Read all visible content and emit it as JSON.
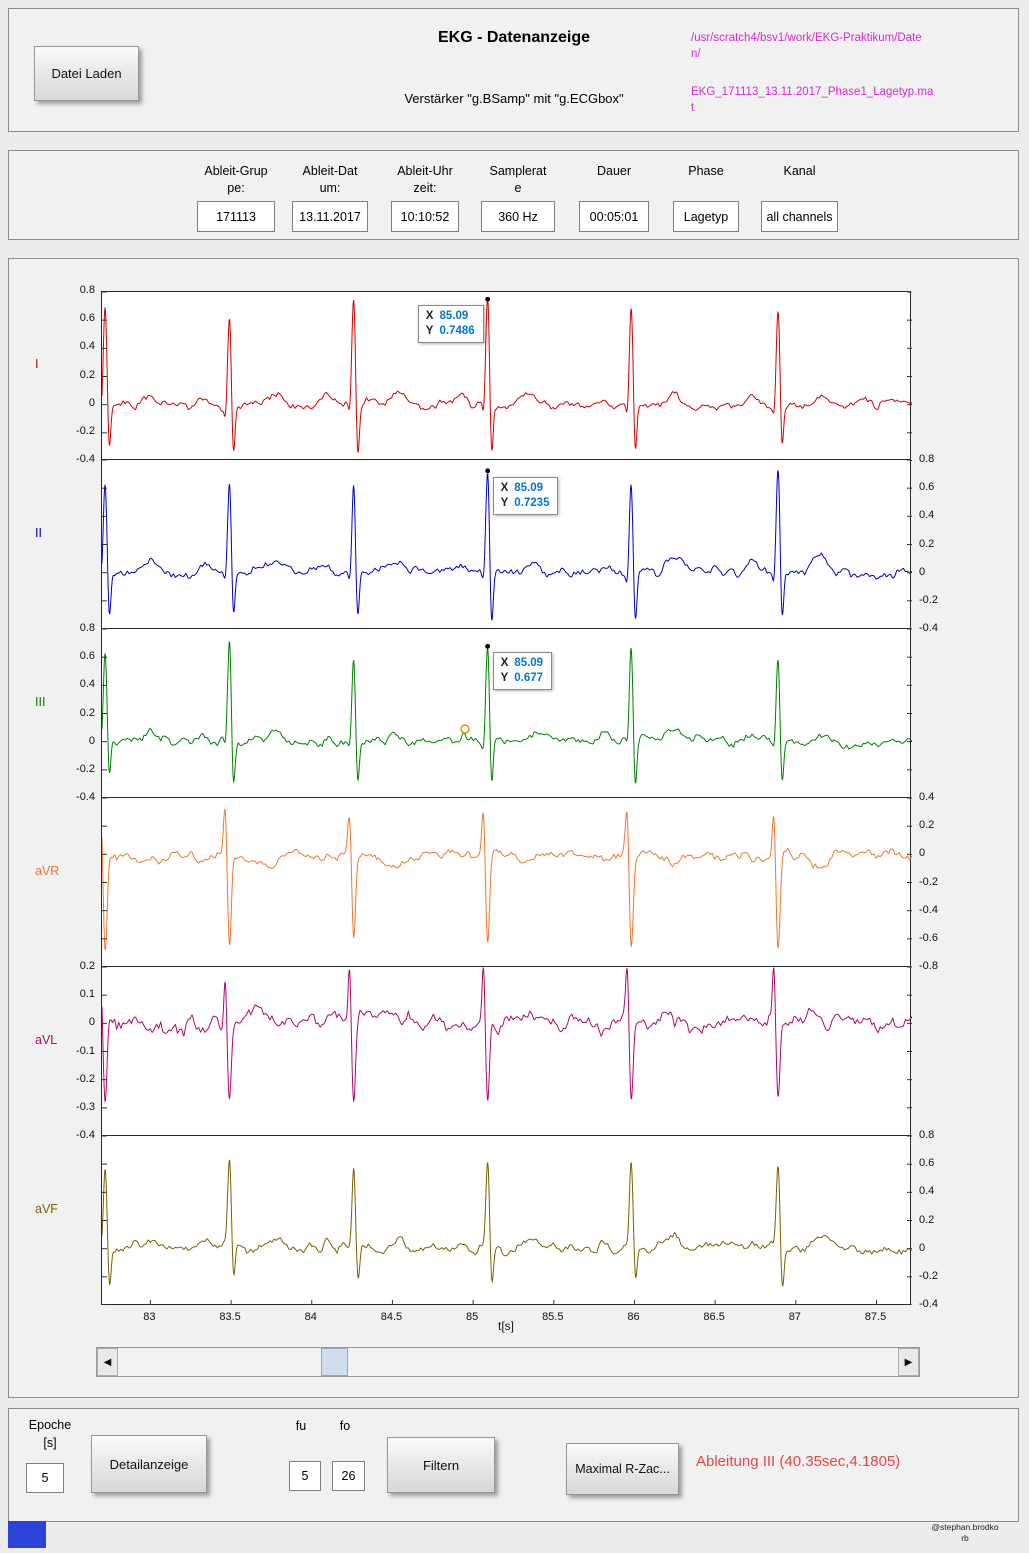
{
  "header": {
    "load_button": "Datei Laden",
    "title": "EKG - Datenanzeige",
    "subtitle": "Verstärker \"g.BSamp\" mit \"g.ECGbox\"",
    "path_color": "#d928d9",
    "path_dir": [
      "/usr/scratch4/bsv1/work/EKG-Praktikum/Date",
      "n/"
    ],
    "path_file": [
      "EKG_171113_13.11.2017_Phase1_Lagetyp.ma",
      "t"
    ]
  },
  "info": {
    "fields": [
      {
        "name": "ableit-gruppe",
        "label": [
          "Ableit-Grup",
          "pe:"
        ],
        "value": "171113"
      },
      {
        "name": "ableit-datum",
        "label": [
          "Ableit-Dat",
          "um:"
        ],
        "value": "13.11.2017"
      },
      {
        "name": "ableit-uhrzeit",
        "label": [
          "Ableit-Uhr",
          "zeit:"
        ],
        "value": "10:10:52"
      },
      {
        "name": "samplerate",
        "label": [
          "Samplerat",
          "e"
        ],
        "value": "360 Hz"
      },
      {
        "name": "dauer",
        "label": [
          "Dauer"
        ],
        "value": "00:05:01"
      },
      {
        "name": "phase",
        "label": [
          "Phase"
        ],
        "value": "Lagetyp"
      },
      {
        "name": "kanal",
        "label": [
          "Kanal"
        ],
        "value": "all channels"
      }
    ]
  },
  "chart_data": {
    "type": "line",
    "title": "",
    "xlabel": "t[s]",
    "x_range": [
      82.7,
      87.72
    ],
    "x_ticks": [
      83,
      83.5,
      84,
      84.5,
      85,
      85.5,
      86,
      86.5,
      87,
      87.5
    ],
    "beat_times_s": [
      82.72,
      83.49,
      84.26,
      85.09,
      85.98,
      86.89
    ],
    "grid": false,
    "channels": [
      {
        "name": "I",
        "color": "#d40000",
        "axis_side": "left",
        "y_range": [
          -0.4,
          0.8
        ],
        "y_ticks": [
          0.8,
          0.6,
          0.4,
          0.2,
          0,
          -0.2,
          -0.4
        ],
        "qrs": [
          [
            -0.16,
            0.05,
            0.025
          ],
          [
            -0.024,
            -0.09,
            0.008
          ],
          [
            0,
            0.7486,
            0.011
          ],
          [
            0.024,
            -0.4,
            0.01
          ],
          [
            0.27,
            0.08,
            0.05
          ]
        ],
        "noise": 0.034,
        "datatip": {
          "x_label": "X",
          "x": "85.09",
          "y_label": "Y",
          "y": "0.7486",
          "side": "left"
        }
      },
      {
        "name": "II",
        "color": "#0000cc",
        "axis_side": "right",
        "y_range": [
          -0.4,
          0.8
        ],
        "y_ticks": [
          0.8,
          0.6,
          0.4,
          0.2,
          0,
          -0.2,
          -0.4
        ],
        "qrs": [
          [
            -0.16,
            0.05,
            0.025
          ],
          [
            -0.024,
            -0.08,
            0.008
          ],
          [
            0,
            0.7235,
            0.011
          ],
          [
            0.024,
            -0.38,
            0.01
          ],
          [
            0.27,
            0.09,
            0.05
          ]
        ],
        "noise": 0.034,
        "datatip": {
          "x_label": "X",
          "x": "85.09",
          "y_label": "Y",
          "y": "0.7235",
          "side": "right"
        }
      },
      {
        "name": "III",
        "color": "#008000",
        "axis_side": "left",
        "y_range": [
          -0.4,
          0.8
        ],
        "y_ticks": [
          0.8,
          0.6,
          0.4,
          0.2,
          0,
          -0.2,
          -0.4
        ],
        "qrs": [
          [
            -0.16,
            0.04,
            0.025
          ],
          [
            -0.024,
            -0.07,
            0.008
          ],
          [
            0,
            0.677,
            0.011
          ],
          [
            0.024,
            -0.34,
            0.01
          ],
          [
            0.27,
            0.06,
            0.05
          ]
        ],
        "noise": 0.034,
        "datatip": {
          "x_label": "X",
          "x": "85.09",
          "y_label": "Y",
          "y": "0.677",
          "side": "right"
        },
        "event_marker": {
          "t": 84.95,
          "v": 0.09,
          "color": "#ff8800"
        }
      },
      {
        "name": "aVR",
        "color": "#ef7832",
        "axis_side": "right",
        "y_range": [
          -0.8,
          0.4
        ],
        "y_ticks": [
          0.4,
          0.2,
          0,
          -0.2,
          -0.4,
          -0.6,
          -0.8
        ],
        "qrs": [
          [
            -0.16,
            -0.04,
            0.025
          ],
          [
            -0.026,
            0.34,
            0.01
          ],
          [
            0,
            -0.66,
            0.012
          ],
          [
            0.25,
            -0.07,
            0.05
          ]
        ],
        "noise": 0.036
      },
      {
        "name": "aVL",
        "color": "#b00868",
        "axis_side": "left",
        "y_range": [
          -0.4,
          0.2
        ],
        "y_ticks": [
          0.2,
          0.1,
          0,
          -0.1,
          -0.2,
          -0.3,
          -0.4
        ],
        "qrs": [
          [
            -0.026,
            0.21,
            0.009
          ],
          [
            0,
            -0.3,
            0.011
          ],
          [
            0.2,
            0.04,
            0.05
          ]
        ],
        "noise": 0.03
      },
      {
        "name": "aVF",
        "color": "#7a6000",
        "axis_side": "right",
        "y_range": [
          -0.4,
          0.8
        ],
        "y_ticks": [
          0.8,
          0.6,
          0.4,
          0.2,
          0,
          -0.2,
          -0.4
        ],
        "qrs": [
          [
            -0.16,
            0.04,
            0.025
          ],
          [
            0,
            0.62,
            0.011
          ],
          [
            0.026,
            -0.26,
            0.01
          ],
          [
            0.27,
            0.07,
            0.05
          ]
        ],
        "noise": 0.034
      }
    ]
  },
  "scrollbar": {
    "left_arrow": "◀",
    "right_arrow": "▶"
  },
  "bottom": {
    "epoche_label": [
      "Epoche",
      "[s]"
    ],
    "epoche_value": "5",
    "detail_button": "Detailanzeige",
    "fu_label": "fu",
    "fo_label": "fo",
    "fu_value": "5",
    "fo_value": "26",
    "filter_button": "Filtern",
    "rzack_button": "Maximal R-Zac...",
    "result_text": "Ableitung III (40.35sec,4.1805)",
    "result_color": "#e8463f"
  },
  "footer": {
    "credit": [
      "@stephan.brodko",
      "rb"
    ]
  }
}
